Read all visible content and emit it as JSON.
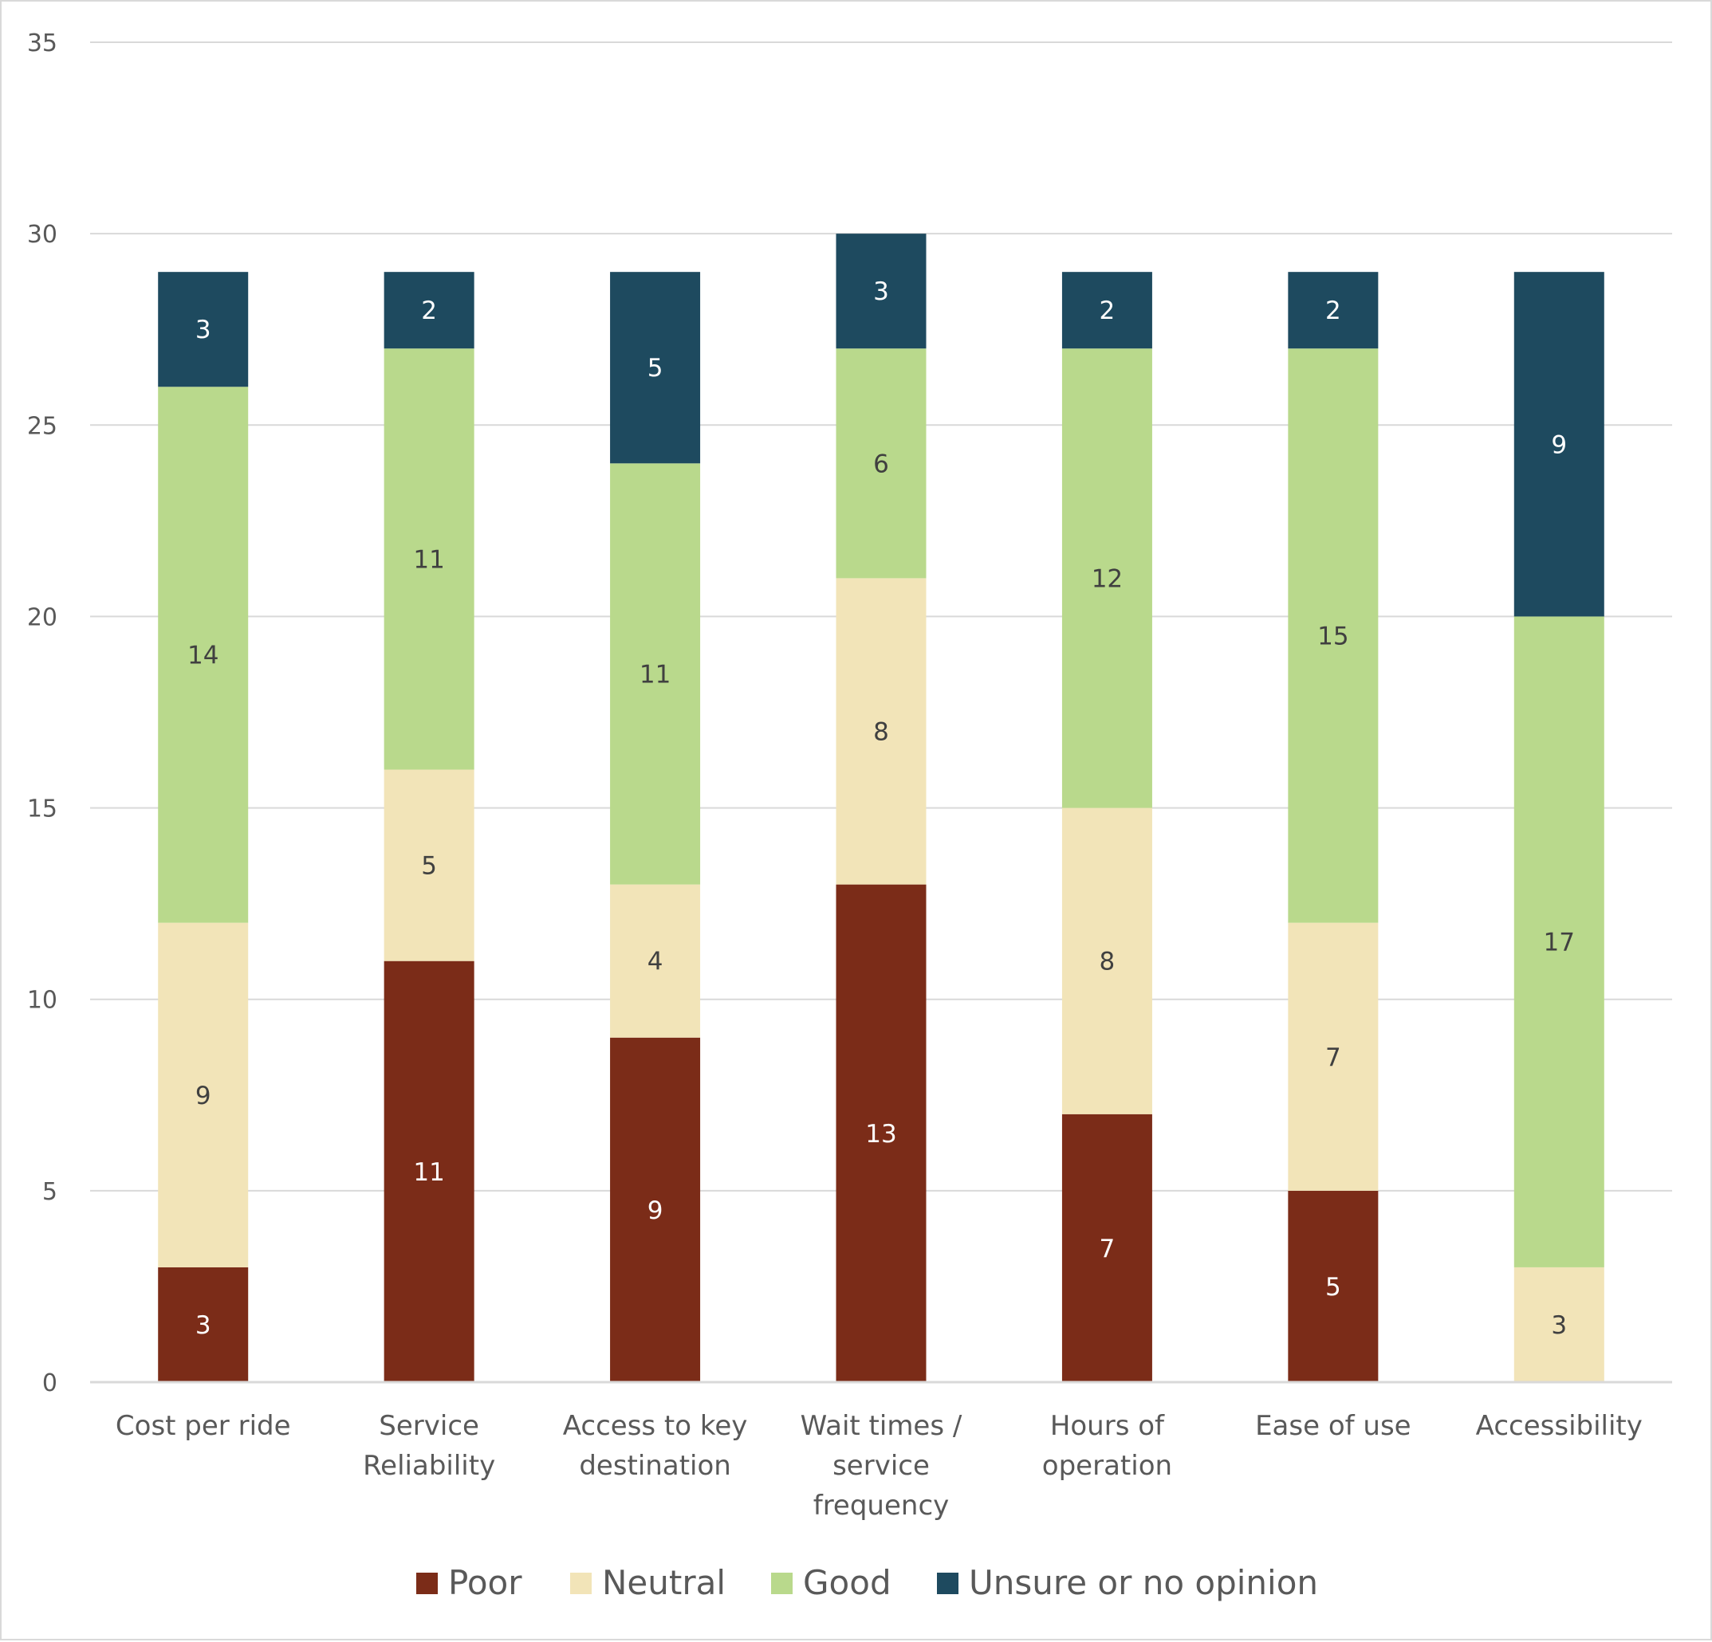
{
  "chart_data": {
    "type": "bar",
    "stacked": true,
    "categories": [
      [
        "Cost per ride"
      ],
      [
        "Service",
        "Reliability"
      ],
      [
        "Access to key",
        "destination"
      ],
      [
        "Wait times /",
        "service",
        "frequency"
      ],
      [
        "Hours of",
        "operation"
      ],
      [
        "Ease of use"
      ],
      [
        "Accessibility"
      ]
    ],
    "series": [
      {
        "name": "Poor",
        "color": "#7b2c18",
        "label_color": "#ffffff",
        "values": [
          3,
          11,
          9,
          13,
          7,
          5,
          0
        ]
      },
      {
        "name": "Neutral",
        "color": "#f2e4b8",
        "label_color": "#404040",
        "values": [
          9,
          5,
          4,
          8,
          8,
          7,
          3
        ]
      },
      {
        "name": "Good",
        "color": "#b9d98c",
        "label_color": "#404040",
        "values": [
          14,
          11,
          11,
          6,
          12,
          15,
          17
        ]
      },
      {
        "name": "Unsure or no opinion",
        "color": "#1e4a5f",
        "label_color": "#ffffff",
        "values": [
          3,
          2,
          5,
          3,
          2,
          2,
          9
        ]
      }
    ],
    "ylim": [
      0,
      35
    ],
    "yticks": [
      "0",
      "5",
      "10",
      "15",
      "20",
      "25",
      "30",
      "35"
    ],
    "grid": true,
    "legend": "bottom",
    "data_labels": true
  }
}
